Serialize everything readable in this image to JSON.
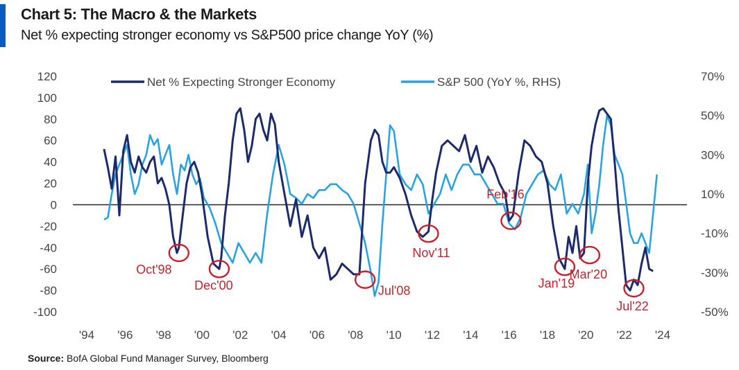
{
  "header": {
    "title": "Chart 5: The Macro & the Markets",
    "subtitle": "Net % expecting stronger economy vs S&P500 price change YoY (%)"
  },
  "footer": {
    "source_label": "Source:",
    "source_text": "BofA Global Fund Manager Survey, Bloomberg"
  },
  "colors": {
    "navy": "#1b2a6b",
    "sky": "#29a3e0",
    "annotation": "#c8202a",
    "title_bar": "#0a5bbf"
  },
  "chart_data": {
    "type": "line",
    "title": "Chart 5: The Macro & the Markets",
    "subtitle": "Net % expecting stronger economy vs S&P500 price change YoY (%)",
    "x_ticks": [
      "'94",
      "'96",
      "'98",
      "'00",
      "'02",
      "'04",
      "'06",
      "'08",
      "'10",
      "'12",
      "'14",
      "'16",
      "'18",
      "'20",
      "'22",
      "'24"
    ],
    "x_range": [
      1994,
      2024
    ],
    "y_left_range": [
      -100,
      120
    ],
    "y_left_ticks": [
      "120",
      "100",
      "80",
      "60",
      "40",
      "20",
      "0",
      "-20",
      "-40",
      "-60",
      "-80",
      "-100"
    ],
    "y_right_range": [
      -50,
      70
    ],
    "y_right_ticks": [
      "70%",
      "50%",
      "30%",
      "10%",
      "-10%",
      "-30%",
      "-50%"
    ],
    "legend_position": "top",
    "series": [
      {
        "name": "Net % Expecting Stronger Economy",
        "axis": "left",
        "color": "#1b2a6b",
        "x": [
          1994.9,
          1995.1,
          1995.3,
          1995.5,
          1995.7,
          1995.9,
          1996.1,
          1996.3,
          1996.5,
          1996.7,
          1996.9,
          1997.1,
          1997.3,
          1997.5,
          1997.7,
          1997.9,
          1998.1,
          1998.3,
          1998.5,
          1998.7,
          1998.8,
          1999.0,
          1999.2,
          1999.4,
          1999.6,
          1999.8,
          2000.0,
          2000.3,
          2000.6,
          2000.9,
          2001.0,
          2001.2,
          2001.4,
          2001.6,
          2001.8,
          2002.0,
          2002.2,
          2002.4,
          2002.6,
          2002.8,
          2003.0,
          2003.2,
          2003.4,
          2003.6,
          2003.8,
          2004.0,
          2004.3,
          2004.6,
          2004.9,
          2005.2,
          2005.5,
          2005.8,
          2006.1,
          2006.4,
          2006.7,
          2007.0,
          2007.3,
          2007.6,
          2007.9,
          2008.2,
          2008.5,
          2008.8,
          2009.0,
          2009.2,
          2009.4,
          2009.6,
          2009.8,
          2010.0,
          2010.3,
          2010.6,
          2010.9,
          2011.2,
          2011.5,
          2011.8,
          2012.0,
          2012.2,
          2012.5,
          2012.8,
          2013.1,
          2013.4,
          2013.7,
          2014.0,
          2014.3,
          2014.6,
          2014.9,
          2015.2,
          2015.5,
          2015.8,
          2016.0,
          2016.2,
          2016.5,
          2016.8,
          2017.1,
          2017.4,
          2017.7,
          2018.0,
          2018.3,
          2018.6,
          2018.9,
          2019.1,
          2019.3,
          2019.5,
          2019.7,
          2019.9,
          2020.1,
          2020.3,
          2020.5,
          2020.7,
          2020.9,
          2021.1,
          2021.3,
          2021.5,
          2021.7,
          2021.9,
          2022.1,
          2022.3,
          2022.5,
          2022.7,
          2022.9,
          2023.1,
          2023.3,
          2023.5
        ],
        "values": [
          52,
          35,
          15,
          45,
          -10,
          50,
          65,
          40,
          30,
          45,
          35,
          30,
          40,
          45,
          20,
          25,
          15,
          0,
          -30,
          -45,
          -40,
          -10,
          20,
          35,
          40,
          30,
          10,
          -30,
          -55,
          -60,
          -50,
          -10,
          20,
          60,
          85,
          90,
          70,
          40,
          55,
          80,
          85,
          70,
          60,
          85,
          75,
          40,
          10,
          -20,
          5,
          -30,
          -10,
          -40,
          -50,
          -40,
          -70,
          -65,
          -55,
          -60,
          -65,
          -65,
          20,
          60,
          70,
          65,
          40,
          30,
          30,
          35,
          25,
          10,
          -10,
          -25,
          -30,
          -25,
          5,
          30,
          55,
          60,
          55,
          50,
          65,
          40,
          55,
          30,
          45,
          35,
          20,
          10,
          -15,
          -10,
          30,
          60,
          55,
          45,
          40,
          20,
          -20,
          -50,
          -60,
          -30,
          -45,
          -20,
          -50,
          -45,
          20,
          55,
          75,
          88,
          90,
          85,
          80,
          40,
          -5,
          -40,
          -75,
          -80,
          -70,
          -75,
          -55,
          -40,
          -60,
          -62
        ]
      },
      {
        "name": "S&P 500 (YoY %, RHS)",
        "axis": "right",
        "color": "#29a3e0",
        "x": [
          1994.9,
          1995.1,
          1995.3,
          1995.5,
          1995.7,
          1995.9,
          1996.1,
          1996.3,
          1996.5,
          1996.7,
          1996.9,
          1997.1,
          1997.3,
          1997.5,
          1997.7,
          1997.9,
          1998.1,
          1998.3,
          1998.5,
          1998.7,
          1998.9,
          1999.1,
          1999.3,
          1999.5,
          1999.7,
          1999.9,
          2000.1,
          2000.4,
          2000.7,
          2001.0,
          2001.3,
          2001.6,
          2001.9,
          2002.2,
          2002.5,
          2002.8,
          2003.1,
          2003.4,
          2003.7,
          2004.0,
          2004.3,
          2004.6,
          2004.9,
          2005.2,
          2005.5,
          2005.8,
          2006.1,
          2006.4,
          2006.7,
          2007.0,
          2007.3,
          2007.6,
          2007.9,
          2008.2,
          2008.5,
          2008.8,
          2009.0,
          2009.2,
          2009.4,
          2009.6,
          2009.8,
          2010.0,
          2010.3,
          2010.6,
          2010.9,
          2011.2,
          2011.5,
          2011.8,
          2012.1,
          2012.4,
          2012.7,
          2013.0,
          2013.3,
          2013.6,
          2013.9,
          2014.2,
          2014.5,
          2014.8,
          2015.1,
          2015.4,
          2015.7,
          2016.0,
          2016.3,
          2016.6,
          2016.9,
          2017.2,
          2017.5,
          2017.8,
          2018.1,
          2018.4,
          2018.7,
          2019.0,
          2019.3,
          2019.6,
          2019.9,
          2020.1,
          2020.3,
          2020.5,
          2020.7,
          2020.9,
          2021.1,
          2021.3,
          2021.5,
          2021.7,
          2021.9,
          2022.1,
          2022.3,
          2022.5,
          2022.7,
          2022.9,
          2023.1,
          2023.3,
          2023.5,
          2023.7
        ],
        "values": [
          -3,
          -2,
          10,
          20,
          25,
          30,
          35,
          20,
          10,
          15,
          25,
          30,
          40,
          35,
          38,
          25,
          30,
          35,
          20,
          10,
          25,
          22,
          30,
          20,
          15,
          18,
          8,
          3,
          -5,
          -15,
          -20,
          -25,
          -15,
          -20,
          -25,
          -20,
          -25,
          0,
          20,
          35,
          25,
          10,
          8,
          5,
          10,
          8,
          12,
          12,
          15,
          15,
          12,
          10,
          5,
          -5,
          -15,
          -30,
          -42,
          -35,
          -5,
          20,
          45,
          42,
          20,
          15,
          12,
          20,
          15,
          0,
          5,
          10,
          20,
          12,
          20,
          25,
          25,
          20,
          20,
          15,
          10,
          5,
          5,
          -5,
          -8,
          -2,
          10,
          15,
          20,
          22,
          15,
          12,
          20,
          0,
          5,
          0,
          10,
          25,
          -10,
          0,
          15,
          35,
          50,
          45,
          30,
          25,
          20,
          5,
          -10,
          -15,
          -15,
          -10,
          -15,
          -20,
          0,
          20
        ]
      }
    ],
    "annotations": [
      {
        "label": "Oct'98",
        "x": 1998.8,
        "y": -45
      },
      {
        "label": "Dec'00",
        "x": 2000.9,
        "y": -60
      },
      {
        "label": "Jul'08",
        "x": 2008.5,
        "y": -70
      },
      {
        "label": "Nov'11",
        "x": 2011.8,
        "y": -27
      },
      {
        "label": "Feb'16",
        "x": 2016.1,
        "y": -15
      },
      {
        "label": "Jan'19",
        "x": 2018.9,
        "y": -58
      },
      {
        "label": "Mar'20",
        "x": 2020.2,
        "y": -47
      },
      {
        "label": "Jul'22",
        "x": 2022.5,
        "y": -78
      }
    ]
  }
}
